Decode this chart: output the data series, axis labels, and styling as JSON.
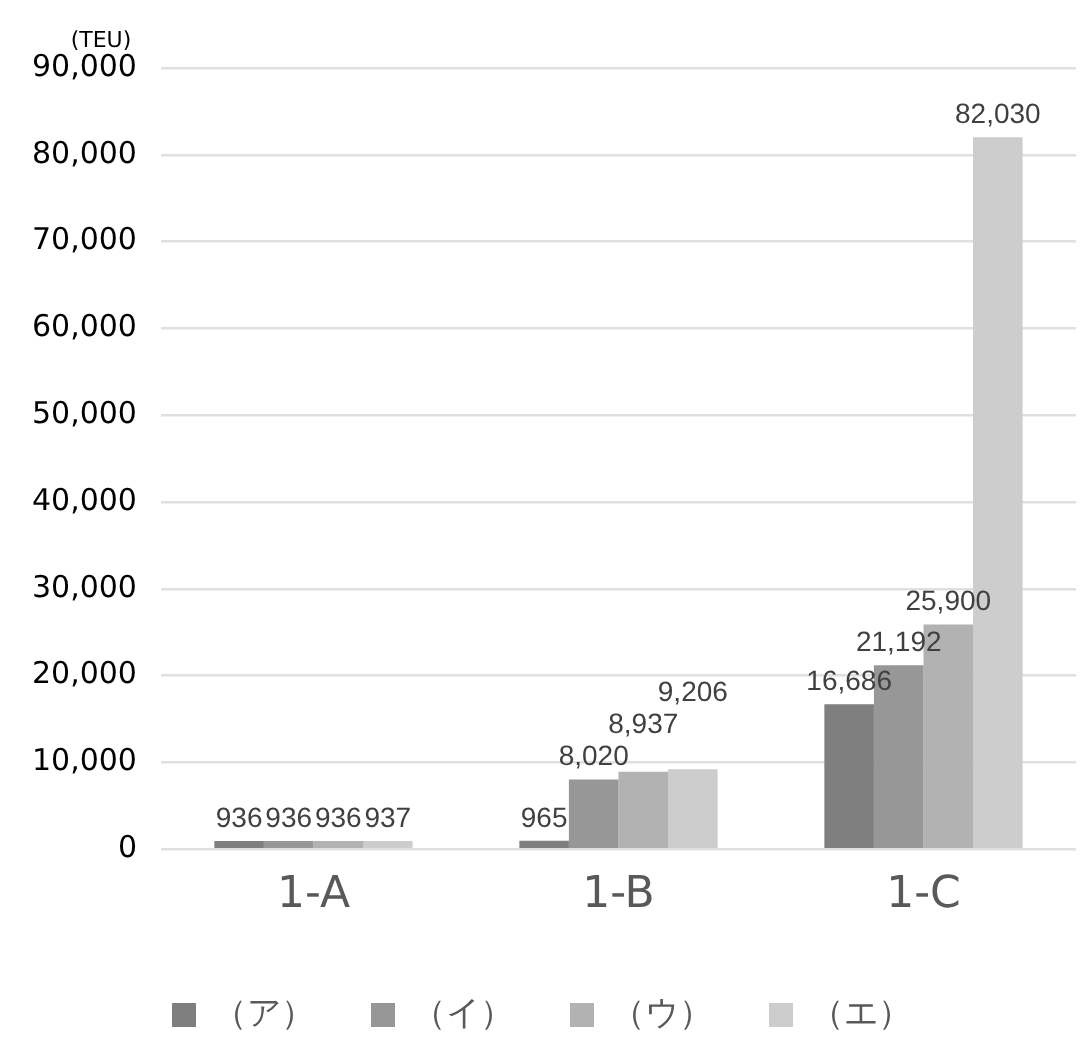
{
  "chart_data": {
    "type": "bar",
    "ylabel": "(TEU)",
    "categories": [
      "1-A",
      "1-B",
      "1-C"
    ],
    "series": [
      {
        "name": "（ア）",
        "color": "#7f7f7f",
        "values": [
          936,
          965,
          16686
        ],
        "value_labels": [
          "936",
          "965",
          "16,686"
        ]
      },
      {
        "name": "（イ）",
        "color": "#979797",
        "values": [
          936,
          8020,
          21192
        ],
        "value_labels": [
          "936",
          "8,020",
          "21,192"
        ]
      },
      {
        "name": "（ウ）",
        "color": "#b2b2b2",
        "values": [
          936,
          8937,
          25900
        ],
        "value_labels": [
          "936",
          "8,937",
          "25,900"
        ]
      },
      {
        "name": "（エ）",
        "color": "#cdcdcd",
        "values": [
          937,
          9206,
          82030
        ],
        "value_labels": [
          "937",
          "9,206",
          "82,030"
        ]
      }
    ],
    "ylim": [
      0,
      90000
    ],
    "yticks": [
      0,
      {
        "value": 10000,
        "label": "10,000"
      },
      {
        "value": 20000,
        "label": "20,000"
      },
      {
        "value": 30000,
        "label": "30,000"
      },
      {
        "value": 40000,
        "label": "40,000"
      },
      {
        "value": 50000,
        "label": "50,000"
      },
      {
        "value": 60000,
        "label": "60,000"
      },
      {
        "value": 70000,
        "label": "70,000"
      },
      {
        "value": 80000,
        "label": "80,000"
      },
      {
        "value": 90000,
        "label": "90,000"
      }
    ],
    "grid": "y",
    "legend": "bottom"
  }
}
